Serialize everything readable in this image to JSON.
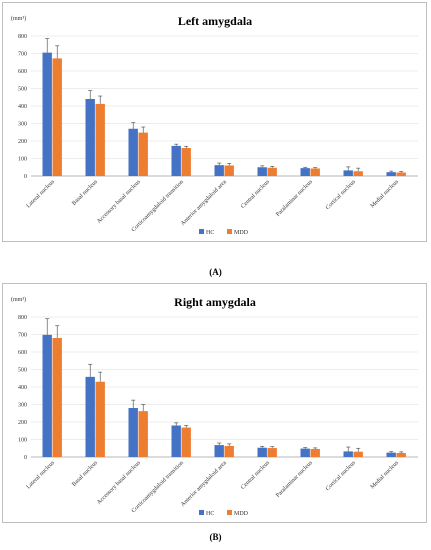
{
  "panels": [
    {
      "tag": "(A)",
      "chart_data": {
        "type": "bar",
        "title": "Left amygdala",
        "unit_label": "(mm³)",
        "categories": [
          "Lateral nucleus",
          "Basal nucleus",
          "Accessory basal nucleus",
          "Corticoamygdaloid transition",
          "Anterior amygdaloid area",
          "Central nucleus",
          "Paralaminar nucleus",
          "Cortical nucleus",
          "Medial nucleus"
        ],
        "series": [
          {
            "name": "HC",
            "color": "#4472c4",
            "values": [
              705,
              440,
              270,
              172,
              62,
              50,
              45,
              32,
              22
            ],
            "errors": [
              80,
              48,
              35,
              10,
              12,
              8,
              5,
              20,
              6
            ]
          },
          {
            "name": "MDD",
            "color": "#ed7d31",
            "values": [
              672,
              412,
              248,
              160,
              60,
              47,
              43,
              27,
              20
            ],
            "errors": [
              72,
              45,
              32,
              10,
              12,
              8,
              5,
              18,
              6
            ]
          }
        ],
        "ylim": [
          0,
          800
        ],
        "yticks": [
          0,
          100,
          200,
          300,
          400,
          500,
          600,
          700,
          800
        ],
        "legend_position": "bottom"
      }
    },
    {
      "tag": "(B)",
      "chart_data": {
        "type": "bar",
        "title": "Right amygdala",
        "unit_label": "(mm³)",
        "categories": [
          "Lateral nucleus",
          "Basal nucleus",
          "Accessory basal nucleus",
          "Corticoamygdaloid transition",
          "Anterior amygdaloid area",
          "Central nucleus",
          "Paralaminar nucleus",
          "Cortical nucleus",
          "Medial nucleus"
        ],
        "series": [
          {
            "name": "HC",
            "color": "#4472c4",
            "values": [
              698,
              458,
              280,
              180,
              68,
              53,
              48,
              32,
              25
            ],
            "errors": [
              92,
              72,
              45,
              15,
              12,
              8,
              6,
              25,
              6
            ]
          },
          {
            "name": "MDD",
            "color": "#ed7d31",
            "values": [
              680,
              430,
              262,
              168,
              63,
              51,
              46,
              30,
              23
            ],
            "errors": [
              70,
              55,
              38,
              12,
              12,
              8,
              6,
              20,
              6
            ]
          }
        ],
        "ylim": [
          0,
          800
        ],
        "yticks": [
          0,
          100,
          200,
          300,
          400,
          500,
          600,
          700,
          800
        ],
        "legend_position": "bottom"
      }
    }
  ]
}
